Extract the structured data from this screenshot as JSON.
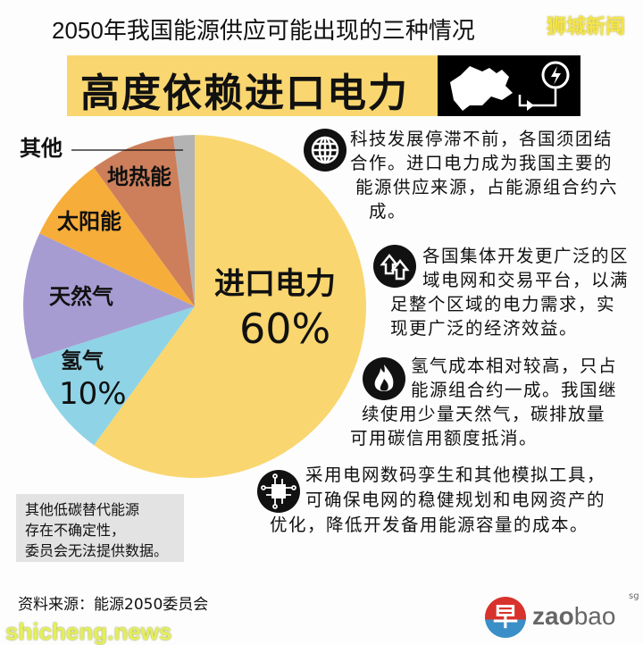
{
  "header": {
    "title": "2050年我国能源供应可能出现的三种情况",
    "banner": "高度依赖进口电力",
    "banner_icon": "map-with-power-plug-icon"
  },
  "watermarks": {
    "top": "狮城新闻",
    "bottom": "shicheng.news"
  },
  "chart_data": {
    "type": "pie",
    "start": "top, clockwise",
    "slices": [
      {
        "label": "进口电力",
        "value": 60,
        "value_label": "60%",
        "color": "#f9d66f"
      },
      {
        "label": "氢气",
        "value": 10,
        "value_label": "10%",
        "color": "#8fd3e6"
      },
      {
        "label": "天然气",
        "value": 12,
        "color": "#a79cd2"
      },
      {
        "label": "太阳能",
        "value": 8,
        "color": "#f6ad3a"
      },
      {
        "label": "地热能",
        "value": 8,
        "color": "#cd7f5b"
      },
      {
        "label": "其他",
        "value": 2,
        "color": "#b3b3b3"
      }
    ]
  },
  "points": [
    {
      "icon": "globe-icon",
      "lines": [
        "科技发展停滞不前，各国须团结",
        "合作。进口电力成为我国主要的",
        "能源供应来源，占能源组合约六",
        "成。"
      ]
    },
    {
      "icon": "double-up-arrow-icon",
      "lines": [
        "各国集体开发更广泛的区",
        "域电网和交易平台，以满",
        "足整个区域的电力需求，实",
        "现更广泛的经济效益。"
      ]
    },
    {
      "icon": "flame-icon",
      "lines": [
        "氢气成本相对较高，只占",
        "能源组合约一成。我国继",
        "续使用少量天然气，碳排放量",
        "可用碳信用额度抵消。"
      ]
    },
    {
      "icon": "circuit-chip-icon",
      "lines": [
        "采用电网数码孪生和其他模拟工具，",
        "可确保电网的稳健规划和电网资产的",
        "优化，降低开发备用能源容量的成本。"
      ]
    }
  ],
  "note": {
    "lines": [
      "其他低碳替代能源",
      "存在不确定性，",
      "委员会无法提供数据。"
    ]
  },
  "source": "资料来源：能源2050委员会",
  "logo": {
    "mark": "早",
    "text_bold": "zao",
    "text_light": "bao",
    "suffix": "sg"
  }
}
